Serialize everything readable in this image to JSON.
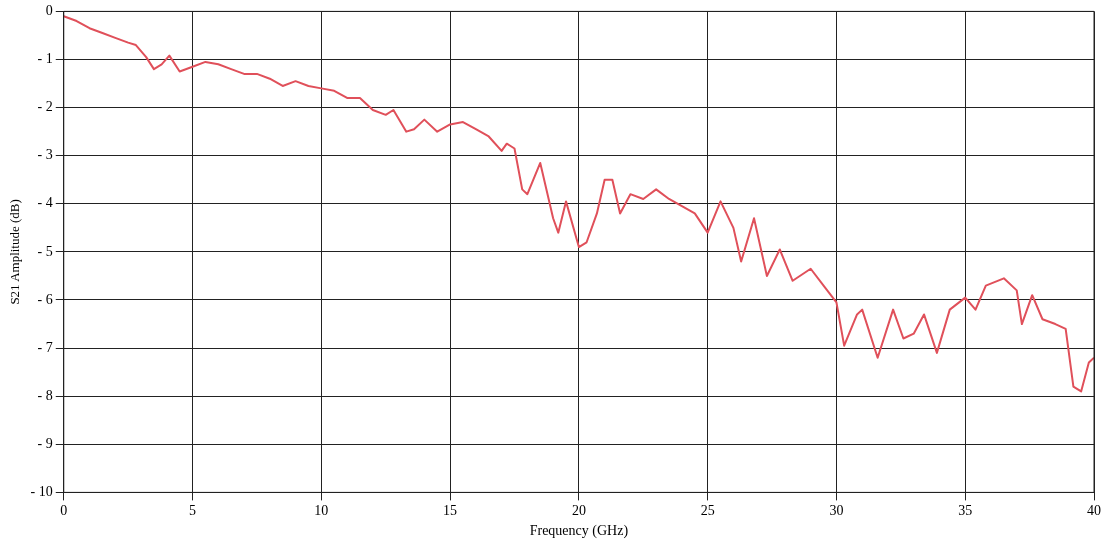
{
  "chart_data": {
    "type": "line",
    "xlabel": "Frequency (GHz)",
    "ylabel": "S21 Amplitude (dB)",
    "x": [
      0,
      0.5,
      1,
      1.5,
      2,
      2.5,
      2.8,
      3.2,
      3.5,
      3.8,
      4.1,
      4.5,
      5,
      5.5,
      6,
      6.5,
      7,
      7.5,
      8,
      8.5,
      9,
      9.5,
      10,
      10.5,
      11,
      11.5,
      12,
      12.5,
      12.8,
      13.3,
      13.6,
      14,
      14.5,
      15,
      15.5,
      16,
      16.5,
      17,
      17.2,
      17.5,
      17.8,
      18,
      18.5,
      19,
      19.2,
      19.5,
      20,
      20.3,
      20.7,
      21,
      21.3,
      21.6,
      22,
      22.5,
      23,
      23.5,
      24,
      24.5,
      25,
      25.5,
      26,
      26.3,
      26.8,
      27.3,
      27.8,
      28.3,
      29,
      29.5,
      30,
      30.3,
      30.8,
      31,
      31.6,
      32.2,
      32.6,
      33,
      33.4,
      33.9,
      34.4,
      35,
      35.4,
      35.8,
      36.5,
      37,
      37.2,
      37.6,
      38,
      38.5,
      38.9,
      39.2,
      39.5,
      39.8,
      40
    ],
    "series": [
      {
        "color": "#e0505a",
        "values": [
          -0.1,
          -0.2,
          -0.35,
          -0.45,
          -0.55,
          -0.65,
          -0.7,
          -0.95,
          -1.2,
          -1.1,
          -0.92,
          -1.25,
          -1.15,
          -1.05,
          -1.1,
          -1.2,
          -1.3,
          -1.3,
          -1.4,
          -1.55,
          -1.45,
          -1.55,
          -1.6,
          -1.65,
          -1.8,
          -1.8,
          -2.05,
          -2.15,
          -2.05,
          -2.5,
          -2.45,
          -2.25,
          -2.5,
          -2.35,
          -2.3,
          -2.45,
          -2.6,
          -2.9,
          -2.75,
          -2.85,
          -3.7,
          -3.8,
          -3.15,
          -4.3,
          -4.6,
          -3.95,
          -4.9,
          -4.8,
          -4.2,
          -3.5,
          -3.5,
          -4.2,
          -3.8,
          -3.9,
          -3.7,
          -3.9,
          -4.05,
          -4.2,
          -4.6,
          -3.95,
          -4.5,
          -5.2,
          -4.3,
          -5.5,
          -4.95,
          -5.6,
          -5.35,
          -5.7,
          -6.05,
          -6.95,
          -6.3,
          -6.2,
          -7.2,
          -6.2,
          -6.8,
          -6.7,
          -6.3,
          -7.1,
          -6.2,
          -5.95,
          -6.2,
          -5.7,
          -5.55,
          -5.8,
          -6.5,
          -5.9,
          -6.4,
          -6.5,
          -6.6,
          -7.8,
          -7.9,
          -7.3,
          -7.2
        ]
      }
    ],
    "xlim": [
      0,
      40
    ],
    "xticks": [
      0,
      5,
      10,
      15,
      20,
      25,
      30,
      35,
      40
    ],
    "ylim": [
      -10,
      0
    ],
    "yticks": [
      -10,
      -9,
      -8,
      -7,
      -6,
      -5,
      -4,
      -3,
      -2,
      -1,
      0
    ],
    "grid": true,
    "legend": false,
    "marker": "none",
    "line_style": "solid"
  }
}
